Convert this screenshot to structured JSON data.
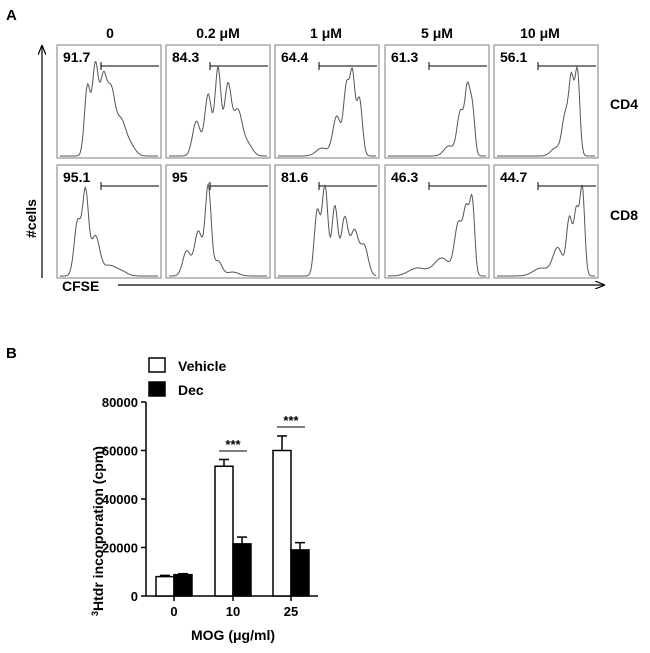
{
  "panel_a": {
    "letter": "A",
    "columns": [
      "0",
      "0.2 μM",
      "1 μM",
      "5 μM",
      "10 μM"
    ],
    "rows": [
      "CD4",
      "CD8"
    ],
    "percentages": [
      [
        "91.7",
        "84.3",
        "64.4",
        "61.3",
        "56.1"
      ],
      [
        "95.1",
        "95",
        "81.6",
        "46.3",
        "44.7"
      ]
    ],
    "y_axis_label": "#cells",
    "x_axis_label": "CFSE"
  },
  "panel_b": {
    "letter": "B",
    "ylabel_sup": "3",
    "ylabel_rest": "Htdr incorporation (cpm)",
    "xlabel": "MOG (μg/ml)",
    "significance": "***"
  },
  "chart_data": [
    {
      "type": "histogram-grid",
      "columns": [
        "0",
        "0.2 μM",
        "1 μM",
        "5 μM",
        "10 μM"
      ],
      "rows": [
        "CD4",
        "CD8"
      ],
      "values": [
        [
          91.7,
          84.3,
          64.4,
          61.3,
          56.1
        ],
        [
          95.1,
          95,
          81.6,
          46.3,
          44.7
        ]
      ],
      "xlabel": "CFSE",
      "ylabel": "#cells"
    },
    {
      "type": "bar",
      "categories": [
        "0",
        "10",
        "25"
      ],
      "series": [
        {
          "name": "Vehicle",
          "values": [
            8000,
            53500,
            60000
          ],
          "errors": [
            500,
            2800,
            6000
          ],
          "color": "#ffffff"
        },
        {
          "name": "Dec",
          "values": [
            8800,
            21500,
            19000
          ],
          "errors": [
            400,
            2800,
            3000
          ],
          "color": "#000000"
        }
      ],
      "xlabel": "MOG (μg/ml)",
      "ylabel": "3Htdr incorporation (cpm)",
      "ylim": [
        0,
        80000
      ],
      "yticks": [
        0,
        20000,
        40000,
        60000,
        80000
      ],
      "legend": "top-left",
      "significance": [
        {
          "category": "10",
          "label": "***"
        },
        {
          "category": "25",
          "label": "***"
        }
      ]
    }
  ]
}
